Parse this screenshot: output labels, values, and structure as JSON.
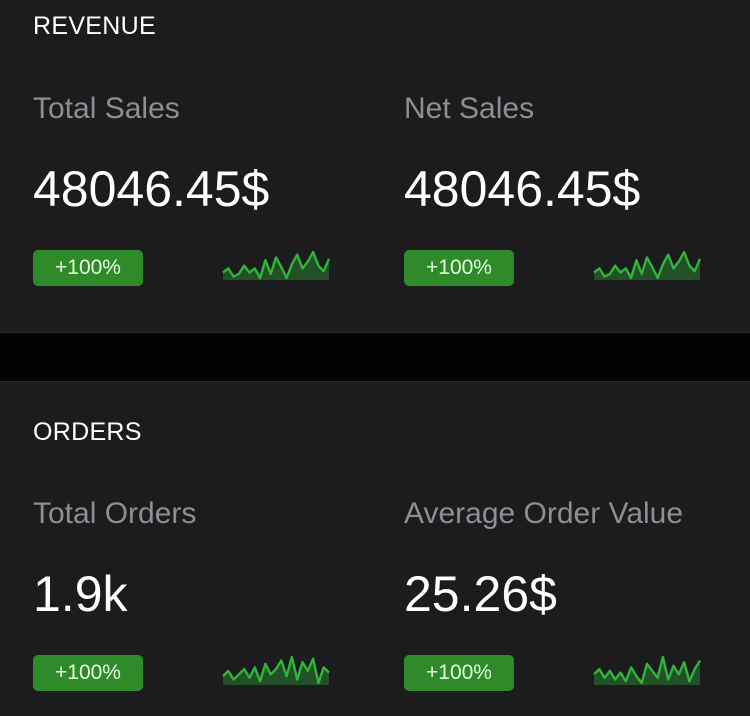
{
  "colors": {
    "card_background": "#1c1c1e",
    "separator": "#000000",
    "label_gray": "#8e8e93",
    "value_white": "#ffffff",
    "badge_green": "#2f8a2a",
    "spark_green": "#30b43a"
  },
  "revenue": {
    "title": "REVENUE",
    "metrics": [
      {
        "label": "Total Sales",
        "value": "48046.45$",
        "change": "+100%",
        "spark": [
          9,
          12,
          6,
          8,
          14,
          9,
          12,
          5,
          18,
          8,
          20,
          13,
          5,
          15,
          22,
          12,
          17,
          24,
          14,
          10,
          19
        ]
      },
      {
        "label": "Net Sales",
        "value": "48046.45$",
        "change": "+100%",
        "spark": [
          9,
          12,
          6,
          8,
          14,
          9,
          12,
          5,
          18,
          8,
          20,
          13,
          5,
          15,
          22,
          12,
          17,
          24,
          14,
          10,
          19
        ]
      }
    ]
  },
  "orders": {
    "title": "ORDERS",
    "metrics": [
      {
        "label": "Total Orders",
        "value": "1.9k",
        "change": "+100%",
        "spark": [
          11,
          14,
          9,
          12,
          15,
          10,
          16,
          8,
          18,
          12,
          15,
          20,
          11,
          22,
          9,
          19,
          14,
          21,
          7,
          16,
          13
        ]
      },
      {
        "label": "Average Order Value",
        "value": "25.26$",
        "change": "+100%",
        "spark": [
          12,
          15,
          10,
          14,
          9,
          13,
          8,
          16,
          11,
          7,
          18,
          14,
          10,
          22,
          9,
          17,
          12,
          19,
          8,
          15,
          20
        ]
      }
    ]
  }
}
